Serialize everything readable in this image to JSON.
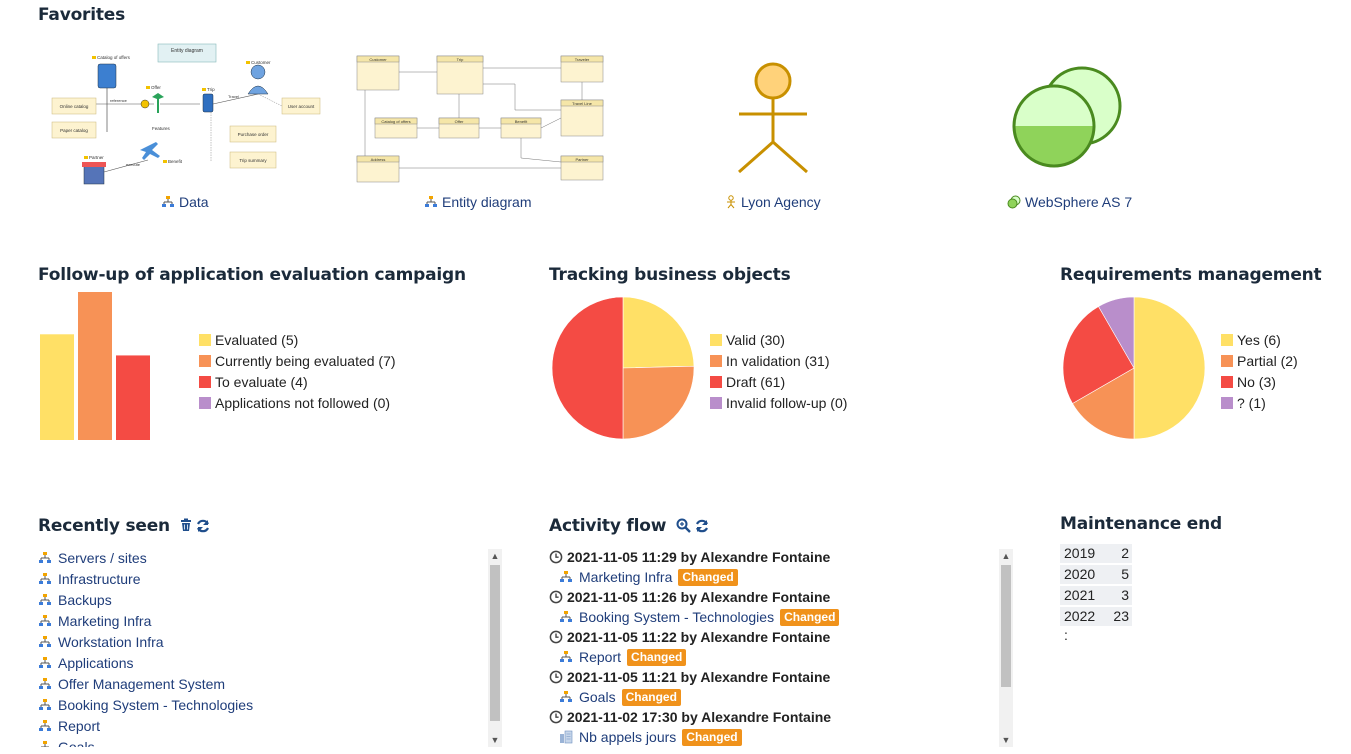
{
  "favorites": {
    "title": "Favorites",
    "items": [
      {
        "label": "Data",
        "icon": "hierarchy-icon"
      },
      {
        "label": "Entity diagram",
        "icon": "hierarchy-icon"
      },
      {
        "label": "Lyon Agency",
        "icon": "actor-icon"
      },
      {
        "label": "WebSphere AS 7",
        "icon": "server-icon"
      }
    ],
    "diagram_data": {
      "nodes": [
        "Catalog of offers",
        "Entity diagram",
        "Customer",
        "Offer",
        "Trip",
        "Online catalog",
        "Paper catalog",
        "Features",
        "User account",
        "Purchase order",
        "Trip summary",
        "Partner",
        "Benefit",
        "reference",
        "Travel",
        "execute"
      ]
    },
    "entity_data": {
      "nodes": [
        "Customer",
        "Trip",
        "Traveler",
        "Travel Line",
        "Catalog of offers",
        "Offer",
        "Benefit",
        "Address",
        "Partner"
      ]
    }
  },
  "campaign": {
    "title": "Follow-up of application evaluation campaign",
    "chart_data": {
      "type": "bar",
      "categories": [
        "Evaluated",
        "Currently being evaluated",
        "To evaluate",
        "Applications not followed"
      ],
      "values": [
        5,
        7,
        4,
        0
      ],
      "colors": [
        "#ffe066",
        "#f79256",
        "#f44b44",
        "#b98ecb"
      ],
      "legend": [
        "Evaluated (5)",
        "Currently being evaluated (7)",
        "To evaluate (4)",
        "Applications not followed (0)"
      ],
      "ylim": [
        0,
        7
      ]
    }
  },
  "tracking": {
    "title": "Tracking business objects",
    "chart_data": {
      "type": "pie",
      "categories": [
        "Valid",
        "In validation",
        "Draft",
        "Invalid follow-up"
      ],
      "values": [
        30,
        31,
        61,
        0
      ],
      "colors": [
        "#ffe066",
        "#f79256",
        "#f44b44",
        "#b98ecb"
      ],
      "legend": [
        "Valid (30)",
        "In validation (31)",
        "Draft (61)",
        "Invalid follow-up (0)"
      ]
    }
  },
  "requirements": {
    "title": "Requirements management",
    "chart_data": {
      "type": "pie",
      "categories": [
        "Yes",
        "Partial",
        "No",
        "?"
      ],
      "values": [
        6,
        2,
        3,
        1
      ],
      "colors": [
        "#ffe066",
        "#f79256",
        "#f44b44",
        "#b98ecb"
      ],
      "legend": [
        "Yes (6)",
        "Partial (2)",
        "No (3)",
        "? (1)"
      ]
    }
  },
  "recently_seen": {
    "title": "Recently seen",
    "items": [
      "Servers / sites",
      "Infrastructure",
      "Backups",
      "Marketing Infra",
      "Workstation Infra",
      "Applications",
      "Offer Management System",
      "Booking System - Technologies",
      "Report",
      "Goals"
    ]
  },
  "activity": {
    "title": "Activity flow",
    "entries": [
      {
        "head": "2021-11-05 11:29 by Alexandre Fontaine",
        "item": "Marketing Infra",
        "badge": "Changed",
        "icon": "hierarchy-icon"
      },
      {
        "head": "2021-11-05 11:26 by Alexandre Fontaine",
        "item": "Booking System - Technologies",
        "badge": "Changed",
        "icon": "hierarchy-icon"
      },
      {
        "head": "2021-11-05 11:22 by Alexandre Fontaine",
        "item": "Report",
        "badge": "Changed",
        "icon": "hierarchy-icon"
      },
      {
        "head": "2021-11-05 11:21 by Alexandre Fontaine",
        "item": "Goals",
        "badge": "Changed",
        "icon": "hierarchy-icon"
      },
      {
        "head": "2021-11-02 17:30 by Alexandre Fontaine",
        "item": "Nb appels jours",
        "badge": "Changed",
        "icon": "indicator-icon"
      }
    ]
  },
  "maintenance": {
    "title": "Maintenance end",
    "rows": [
      {
        "year": "2019 :",
        "value": "2"
      },
      {
        "year": "2020 :",
        "value": "5"
      },
      {
        "year": "2021 :",
        "value": "3"
      },
      {
        "year": "2022 :",
        "value": "23"
      }
    ]
  }
}
